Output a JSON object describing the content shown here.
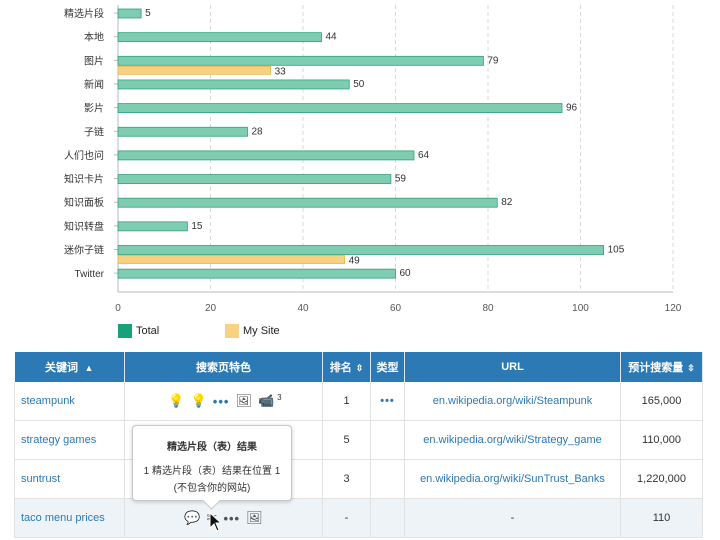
{
  "chart_data": {
    "type": "bar",
    "orientation": "horizontal",
    "categories": [
      "精选片段",
      "本地",
      "图片",
      "新闻",
      "影片",
      "子链",
      "人们也问",
      "知识卡片",
      "知识面板",
      "知识转盘",
      "迷你子链",
      "Twitter"
    ],
    "series": [
      {
        "name": "Total",
        "color": "#7ecdb0",
        "values": [
          5,
          44,
          79,
          50,
          96,
          28,
          64,
          59,
          82,
          15,
          105,
          60
        ]
      },
      {
        "name": "My Site",
        "color": "#f8d282",
        "values": [
          null,
          null,
          33,
          null,
          null,
          null,
          null,
          null,
          null,
          null,
          49,
          null
        ]
      }
    ],
    "xlim": [
      0,
      120
    ],
    "xticks": [
      0,
      20,
      40,
      60,
      80,
      100,
      120
    ],
    "grid": true,
    "legend_position": "bottom-left"
  },
  "legend": {
    "total": "Total",
    "mysite": "My Site"
  },
  "table": {
    "headers": {
      "keyword": "关键词",
      "features": "搜索页特色",
      "rank": "排名",
      "type": "类型",
      "url": "URL",
      "volume": "预计搜索量"
    },
    "rows": [
      {
        "keyword": "steampunk",
        "rank": "1",
        "url": "en.wikipedia.org/wiki/Steampunk",
        "volume": "165,000",
        "feature_count": "3"
      },
      {
        "keyword": "strategy games",
        "rank": "5",
        "url": "en.wikipedia.org/wiki/Strategy_game",
        "volume": "110,000"
      },
      {
        "keyword": "suntrust",
        "rank": "3",
        "url": "en.wikipedia.org/wiki/SunTrust_Banks",
        "volume": "1,220,000"
      },
      {
        "keyword": "taco menu prices",
        "rank": "-",
        "url": "-",
        "volume": "110"
      }
    ]
  },
  "tooltip": {
    "title": "精选片段（表）结果",
    "line1": "1 精选片段（表）结果在位置 1",
    "line2": "(不包含你的网站)"
  },
  "icons": {
    "bulb": "💡",
    "dots": "•••",
    "image": "🖼",
    "video": "📹",
    "comments": "💬",
    "scissors": "✂"
  }
}
